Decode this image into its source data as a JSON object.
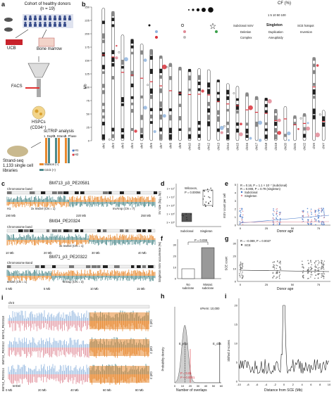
{
  "panel_labels": [
    "a",
    "b",
    "c",
    "d",
    "e",
    "f",
    "g",
    "h",
    "i"
  ],
  "panel_a": {
    "cohort": "Cohort of healthy donors",
    "n": "(n = 19)",
    "ucb": "UCB",
    "bone_marrow": "Bone marrow",
    "facs": "FACS",
    "hspcs": "HSPCs",
    "cd34": "(CD34⁺)",
    "strandseq": "Strand-seq",
    "cells": "1,133 single cell",
    "libraries": "libraries",
    "sctrip": "scTRIP analysis",
    "step1": "1. Depth",
    "step2": "2. Strand",
    "step3": "3. Phase",
    "h1": "H1",
    "h2": "H2",
    "watson": "Watson (–)",
    "crick": "Crick (+)"
  },
  "panel_b": {
    "cf_title": "CF (%)",
    "cf_ticks": "1  5 10 50 100",
    "legend": {
      "subclonal": "Subclonal mSV",
      "singleton": "Singleton",
      "sce": "SCE hotspot",
      "deletion": "Deletion",
      "duplication": "Duplication",
      "inversion": "Inversion",
      "complex": "Complex",
      "aneuploidy": "Aneuploidy"
    },
    "ylabel": "Mb",
    "yticks": [
      "250",
      "225",
      "200",
      "175",
      "150",
      "125",
      "100",
      "75",
      "50",
      "25",
      "0"
    ],
    "chromosomes": [
      "chr1",
      "chr2",
      "chr3",
      "chr4",
      "chr5",
      "chr6",
      "chr7",
      "chr8",
      "chr9",
      "chr10",
      "chr11",
      "chr12",
      "chr13",
      "chr14",
      "chr15",
      "chr16",
      "chr17",
      "chr18",
      "chr19",
      "chr20",
      "chr21",
      "chr22",
      "chrX",
      "chrY"
    ],
    "lengths_mb": [
      248,
      242,
      198,
      190,
      181,
      171,
      159,
      145,
      138,
      134,
      135,
      133,
      114,
      107,
      102,
      90,
      83,
      80,
      59,
      64,
      47,
      51,
      156,
      57
    ]
  },
  "panel_c": {
    "rows": [
      {
        "cell": "BM713_p3_PE20581",
        "band": "Chromosome band",
        "axis": [
          "190 Mb",
          "220 Mb",
          "250 Mb"
        ],
        "note1": "3x InvDel (CN = 1)",
        "note2": "InvAmp (CN = 7)",
        "h": [
          "H1",
          "H2"
        ]
      },
      {
        "cell": "BM34_PE20324",
        "band": "Chromosome band",
        "axis": [
          "10 Mb",
          "20 Mb",
          "30 Mb",
          "40 Mb"
        ],
        "note1": "3x InvDel (CN = 1)",
        "note2": "",
        "h": [
          "H1",
          "H2"
        ]
      },
      {
        "cell": "BM71_p3_PE20322",
        "band": "Chromosome Band",
        "axis": [
          "0 Mb",
          "5 Mb",
          "10 Mb",
          "15 Mb"
        ],
        "note1": "terDel (CN = 1)",
        "note2": "TerDup (CN = 3)",
        "h": [
          "H1",
          "H2"
        ]
      }
    ]
  },
  "panel_d": {
    "ylabel": "SV size (log₁₀ bp)",
    "yticks": [
      "3 × 10⁷",
      "1 × 10⁷",
      "3 × 10⁶",
      "1 × 10⁶",
      "3 × 10⁵"
    ],
    "test": "Wilcoxon,",
    "p": "P = 0.00094",
    "xcats": [
      "Subclonal",
      "Singleton"
    ]
  },
  "panel_e": {
    "ylabel": "mSV count per cell",
    "xlabel": "Donor age",
    "xticks": [
      "0",
      "25",
      "50",
      "75"
    ],
    "yticks": [
      "0",
      "1",
      "2",
      "3",
      "4",
      "5"
    ],
    "stat1": "R = 0.16, P = 1.1 × 10⁻⁷ (subclonal)",
    "stat2": "R = 0.008, P = 0.79 (singleton)",
    "leg1": "Subclonal",
    "leg2": "Singleton"
  },
  "panel_f": {
    "ylabel": "Singleton mSV occurrence (%)",
    "yticks": [
      "0",
      "10",
      "20",
      "30"
    ],
    "p": "P = 0.038",
    "xcats": [
      "No subclone",
      "Mosaic subclone"
    ]
  },
  "panel_g": {
    "ylabel": "SCE count",
    "xlabel": "Donor age",
    "xticks": [
      "0",
      "25",
      "50",
      "75"
    ],
    "yticks": [
      "0",
      "10",
      "20",
      "30"
    ],
    "stat": "R = –0.089, P = 0.0027",
    "leg": "SCE"
  },
  "panel_h": {
    "ylabel": "Probability density",
    "xlabel": "Number of overlaps",
    "xticks": [
      "0",
      "10",
      "20",
      "30",
      "40",
      "50",
      "60"
    ],
    "title": "nPerm: 10,000",
    "e_exp": "E_exp",
    "e_obs": "E_obs",
    "p": "P = 0.05",
    "p2": "P < 0.0001"
  },
  "panel_i": {
    "ylabel": "Shifted Z-scores",
    "xlabel": "Distance from SCE (Mb)",
    "xticks": [
      "-10",
      "-8",
      "-6",
      "-4",
      "-2",
      "0",
      "2",
      "4",
      "6",
      "8",
      "10"
    ],
    "yticks": [
      "0",
      "5",
      "10",
      "15",
      "20"
    ]
  },
  "panel_i_left": {
    "chr": "chr3",
    "cells": [
      "BM710_PE20318",
      "BM710_PE20312",
      "BM710_PE20314"
    ],
    "right_tags": [
      "Cell 1",
      "Cell 2",
      "Cell 3"
    ],
    "axis": [
      "0 Mb",
      "20 Mb",
      "40 Mb",
      "60 Mb",
      "80 Mb"
    ],
    "note": "terDel"
  },
  "colors": {
    "teal": "#4e8a8c",
    "orange": "#e8892f",
    "blue": "#3f74c8",
    "pink": "#e08a96",
    "red": "#d9303a",
    "green": "#3aa04a",
    "light_blue": "#8fb4de"
  }
}
